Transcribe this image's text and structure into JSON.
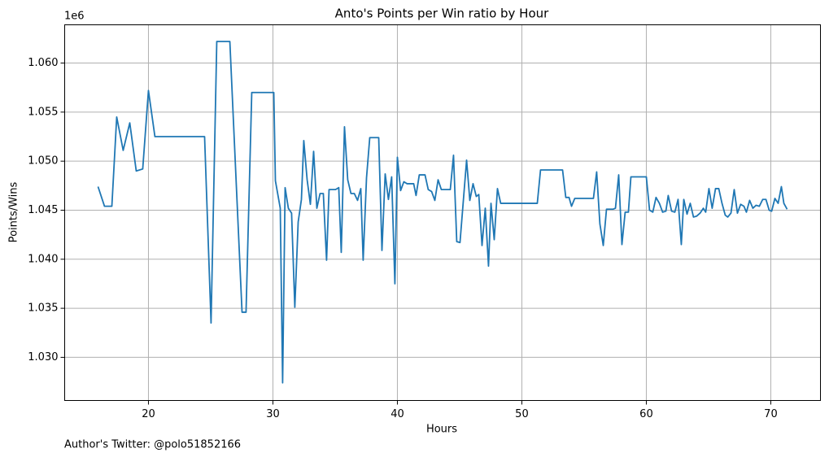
{
  "chart_data": {
    "type": "line",
    "title": "Anto's Points per Win ratio by Hour",
    "xlabel": "Hours",
    "ylabel": "Points/Wins",
    "y_offset_label": "1e6",
    "footnote": "Author's Twitter: @polo51852166",
    "color": "#1f77b4",
    "grid": true,
    "xlim": [
      13.27,
      73.99
    ],
    "xticks": [
      20,
      30,
      40,
      50,
      60,
      70
    ],
    "ylim": [
      1025600,
      1063900
    ],
    "yticks": [
      {
        "value": 1030000,
        "label": "1.030"
      },
      {
        "value": 1035000,
        "label": "1.035"
      },
      {
        "value": 1040000,
        "label": "1.040"
      },
      {
        "value": 1045000,
        "label": "1.045"
      },
      {
        "value": 1050000,
        "label": "1.050"
      },
      {
        "value": 1055000,
        "label": "1.055"
      },
      {
        "value": 1060000,
        "label": "1.060"
      }
    ],
    "x": [
      15.95,
      16.47,
      16.99,
      17.06,
      17.45,
      17.97,
      18.5,
      19.02,
      19.54,
      20.0,
      20.52,
      24.51,
      25.03,
      25.49,
      26.54,
      27.52,
      27.84,
      28.3,
      30.07,
      30.2,
      30.59,
      30.78,
      30.98,
      31.24,
      31.5,
      31.76,
      32.03,
      32.29,
      32.48,
      32.75,
      33.01,
      33.27,
      33.53,
      33.79,
      34.05,
      34.31,
      34.51,
      35.03,
      35.29,
      35.49,
      35.75,
      36.01,
      36.27,
      36.54,
      36.8,
      37.06,
      37.25,
      37.52,
      37.78,
      38.5,
      38.76,
      39.02,
      39.28,
      39.54,
      39.8,
      40.0,
      40.26,
      40.52,
      40.78,
      41.31,
      41.5,
      41.76,
      42.22,
      42.48,
      42.75,
      43.01,
      43.27,
      43.53,
      44.25,
      44.51,
      44.77,
      45.03,
      45.56,
      45.82,
      46.08,
      46.34,
      46.54,
      46.8,
      47.06,
      47.32,
      47.52,
      47.78,
      48.04,
      48.3,
      51.24,
      51.5,
      53.27,
      53.53,
      53.79,
      53.99,
      54.25,
      55.75,
      56.01,
      56.27,
      56.54,
      56.8,
      57.32,
      57.52,
      57.78,
      58.04,
      58.3,
      58.56,
      58.76,
      60.0,
      60.26,
      60.52,
      60.78,
      61.05,
      61.31,
      61.57,
      61.76,
      62.03,
      62.29,
      62.55,
      62.81,
      63.01,
      63.27,
      63.53,
      63.79,
      64.05,
      64.32,
      64.58,
      64.77,
      65.03,
      65.29,
      65.56,
      65.82,
      66.08,
      66.34,
      66.54,
      66.8,
      67.06,
      67.32,
      67.58,
      67.84,
      68.04,
      68.3,
      68.56,
      68.82,
      69.08,
      69.35,
      69.61,
      69.87,
      70.07,
      70.33,
      70.59,
      70.85,
      71.05,
      71.31
    ],
    "values": [
      1047400,
      1045400,
      1045400,
      1045400,
      1054500,
      1051100,
      1053900,
      1049000,
      1049200,
      1057200,
      1052500,
      1052500,
      1033500,
      1062200,
      1062200,
      1034600,
      1034600,
      1057000,
      1057000,
      1048000,
      1045200,
      1027400,
      1047300,
      1045200,
      1044700,
      1035100,
      1043800,
      1046100,
      1052100,
      1048100,
      1045600,
      1051000,
      1045200,
      1046700,
      1046700,
      1039900,
      1047100,
      1047100,
      1047300,
      1040700,
      1053500,
      1048100,
      1046700,
      1046700,
      1046000,
      1047200,
      1039900,
      1048300,
      1052400,
      1052400,
      1040900,
      1048700,
      1046100,
      1048400,
      1037500,
      1050400,
      1047000,
      1047900,
      1047700,
      1047700,
      1046500,
      1048600,
      1048600,
      1047100,
      1046900,
      1046000,
      1048100,
      1047100,
      1047100,
      1050600,
      1041800,
      1041700,
      1050100,
      1046000,
      1047700,
      1046400,
      1046600,
      1041400,
      1045200,
      1039300,
      1045700,
      1042000,
      1047200,
      1045700,
      1045700,
      1049100,
      1049100,
      1046300,
      1046300,
      1045400,
      1046200,
      1046200,
      1048900,
      1043600,
      1041400,
      1045100,
      1045100,
      1045200,
      1048600,
      1041500,
      1044800,
      1044800,
      1048400,
      1048400,
      1045000,
      1044800,
      1046300,
      1045700,
      1044800,
      1044900,
      1046500,
      1044900,
      1044800,
      1046100,
      1041500,
      1046100,
      1044600,
      1045700,
      1044300,
      1044400,
      1044700,
      1045200,
      1044800,
      1047200,
      1045200,
      1047200,
      1047200,
      1045700,
      1044500,
      1044300,
      1044700,
      1047100,
      1044700,
      1045600,
      1045400,
      1044800,
      1046000,
      1045200,
      1045500,
      1045400,
      1046100,
      1046100,
      1045000,
      1044900,
      1046200,
      1045700,
      1047400,
      1045700,
      1045100
    ]
  }
}
